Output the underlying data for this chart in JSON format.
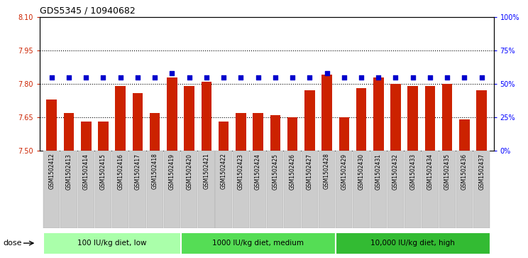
{
  "title": "GDS5345 / 10940682",
  "samples": [
    "GSM1502412",
    "GSM1502413",
    "GSM1502414",
    "GSM1502415",
    "GSM1502416",
    "GSM1502417",
    "GSM1502418",
    "GSM1502419",
    "GSM1502420",
    "GSM1502421",
    "GSM1502422",
    "GSM1502423",
    "GSM1502424",
    "GSM1502425",
    "GSM1502426",
    "GSM1502427",
    "GSM1502428",
    "GSM1502429",
    "GSM1502430",
    "GSM1502431",
    "GSM1502432",
    "GSM1502433",
    "GSM1502434",
    "GSM1502435",
    "GSM1502436",
    "GSM1502437"
  ],
  "bar_values": [
    7.73,
    7.67,
    7.63,
    7.63,
    7.79,
    7.76,
    7.67,
    7.83,
    7.79,
    7.81,
    7.63,
    7.67,
    7.67,
    7.66,
    7.65,
    7.77,
    7.84,
    7.65,
    7.78,
    7.83,
    7.8,
    7.79,
    7.79,
    7.8,
    7.64,
    7.77
  ],
  "percentile_values": [
    55,
    55,
    55,
    55,
    55,
    55,
    55,
    58,
    55,
    55,
    55,
    55,
    55,
    55,
    55,
    55,
    58,
    55,
    55,
    55,
    55,
    55,
    55,
    55,
    55,
    55
  ],
  "groups": [
    {
      "label": "100 IU/kg diet, low",
      "start": 0,
      "end": 8
    },
    {
      "label": "1000 IU/kg diet, medium",
      "start": 8,
      "end": 17
    },
    {
      "label": "10,000 IU/kg diet, high",
      "start": 17,
      "end": 26
    }
  ],
  "group_colors": [
    "#AAFFAA",
    "#55DD55",
    "#33BB33"
  ],
  "bar_color": "#CC2200",
  "dot_color": "#0000CC",
  "ylim_left": [
    7.5,
    8.1
  ],
  "ylim_right": [
    0,
    100
  ],
  "yticks_left": [
    7.5,
    7.65,
    7.8,
    7.95,
    8.1
  ],
  "yticks_right": [
    0,
    25,
    50,
    75,
    100
  ],
  "grid_values": [
    7.65,
    7.8,
    7.95
  ],
  "tick_bg_color": "#CCCCCC",
  "plot_bg_color": "#FFFFFF",
  "fig_bg_color": "#FFFFFF"
}
